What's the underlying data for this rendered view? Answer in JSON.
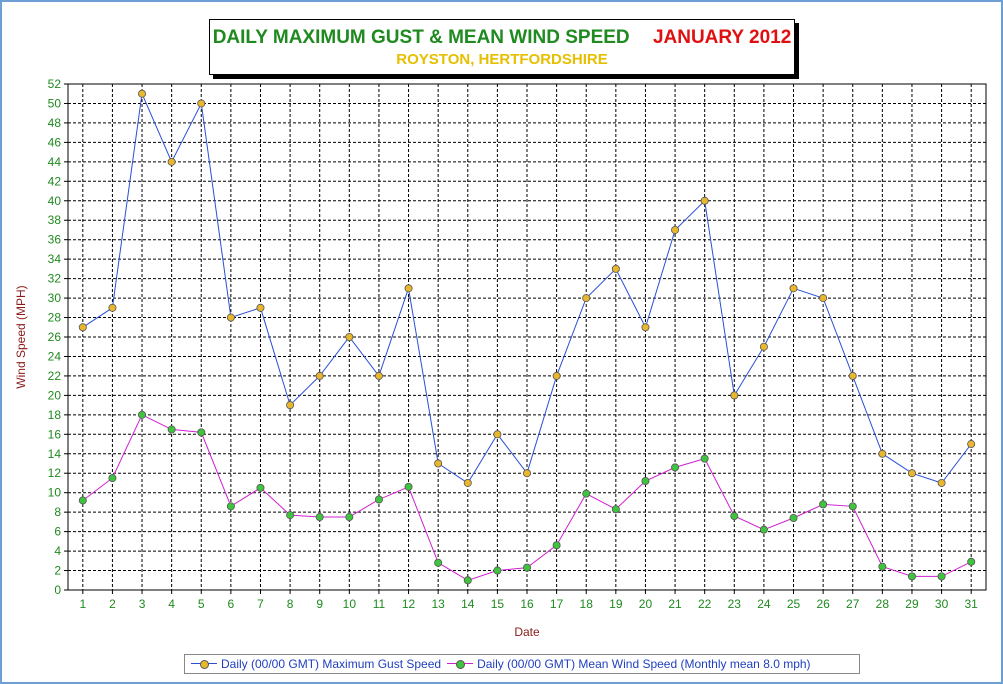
{
  "chart_data": {
    "type": "line",
    "title": "DAILY MAXIMUM GUST & MEAN WIND SPEED",
    "title_month": "JANUARY 2012",
    "subtitle": "ROYSTON, HERTFORDSHIRE",
    "xlabel": "Date",
    "ylabel": "Wind Speed (MPH)",
    "ylim": [
      0,
      52
    ],
    "ytick_step": 2,
    "grid": true,
    "legend_position": "bottom",
    "x": [
      1,
      2,
      3,
      4,
      5,
      6,
      7,
      8,
      9,
      10,
      11,
      12,
      13,
      14,
      15,
      16,
      17,
      18,
      19,
      20,
      21,
      22,
      23,
      24,
      25,
      26,
      27,
      28,
      29,
      30,
      31
    ],
    "series": [
      {
        "name": "Daily (00/00 GMT) Maximum Gust Speed",
        "line_color": "#2a4fd6",
        "marker_color": "#e8b72e",
        "values": [
          27,
          29,
          51,
          44,
          50,
          28,
          29,
          19,
          22,
          26,
          22,
          31,
          13,
          11,
          16,
          12,
          22,
          30,
          33,
          27,
          37,
          40,
          20,
          25,
          31,
          30,
          22,
          14,
          12,
          11,
          15
        ]
      },
      {
        "name": "Daily (00/00 GMT) Mean Wind Speed (Monthly mean 8.0 mph)",
        "line_color": "#d21fd2",
        "marker_color": "#3ec43e",
        "values": [
          9.2,
          11.5,
          18,
          16.5,
          16.2,
          8.6,
          10.5,
          7.7,
          7.5,
          7.5,
          9.3,
          10.6,
          2.8,
          1.0,
          2.0,
          2.3,
          4.6,
          9.9,
          8.3,
          11.2,
          12.6,
          13.5,
          7.6,
          6.2,
          7.4,
          8.8,
          8.6,
          2.4,
          1.4,
          1.4,
          2.9
        ]
      }
    ]
  },
  "colors": {
    "frame": "#6d9fd6",
    "title_main": "#1f8a1f",
    "title_month": "#e01010",
    "subtitle": "#e6c000",
    "axis_label": "#8b1a1a",
    "tick_label": "#1f8a1f",
    "legend_text": "#1f3fbf"
  }
}
